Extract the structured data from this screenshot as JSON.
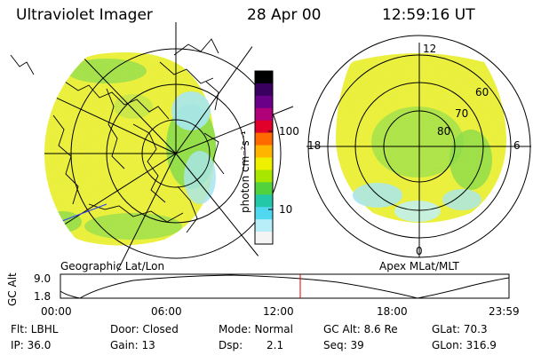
{
  "header": {
    "title": "Ultraviolet Imager",
    "date": "28 Apr 00",
    "time": "12:59:16 UT"
  },
  "colorbar": {
    "unit_label": "photon cm⁻²s⁻¹",
    "ticks": [
      "100",
      "10"
    ],
    "colors": [
      "#000000",
      "#3a0060",
      "#6a0088",
      "#b0007a",
      "#e0002a",
      "#ff6a00",
      "#ffb400",
      "#eef000",
      "#a8e600",
      "#52d23c",
      "#22c8a8",
      "#50d8f0",
      "#b8eef8",
      "#f4f4f4"
    ]
  },
  "left_map": {
    "caption": "Geographic Lat/Lon"
  },
  "right_map": {
    "caption": "Apex MLat/MLT",
    "lat_labels": [
      "60",
      "70",
      "80"
    ],
    "mlt_labels": [
      "12",
      "18",
      "6",
      "0"
    ]
  },
  "timeline": {
    "ylabel": "GC Alt",
    "yticks": [
      "9.0",
      "1.8"
    ],
    "xticks": [
      "00:00",
      "06:00",
      "12:00",
      "18:00",
      "23:59"
    ],
    "marker_time": "12:59"
  },
  "footer": {
    "filter": "Flt: LBHL",
    "ip": "IP: 36.0",
    "door": "Door: Closed",
    "gain": "Gain: 13",
    "mode": "Mode: Normal",
    "dsp_label": "Dsp:",
    "dsp_value": "2.1",
    "gc_alt": "GC Alt: 8.6 Re",
    "seq": "Seq: 39",
    "glat": "GLat: 70.3",
    "glon": "GLon: 316.9"
  },
  "colors": {
    "aurora_main": "#e9ee2a",
    "aurora_green": "#7fd83a",
    "aurora_cyan": "#9fe4ef",
    "marker": "#dd0000",
    "line_blue": "#2a3aff"
  }
}
